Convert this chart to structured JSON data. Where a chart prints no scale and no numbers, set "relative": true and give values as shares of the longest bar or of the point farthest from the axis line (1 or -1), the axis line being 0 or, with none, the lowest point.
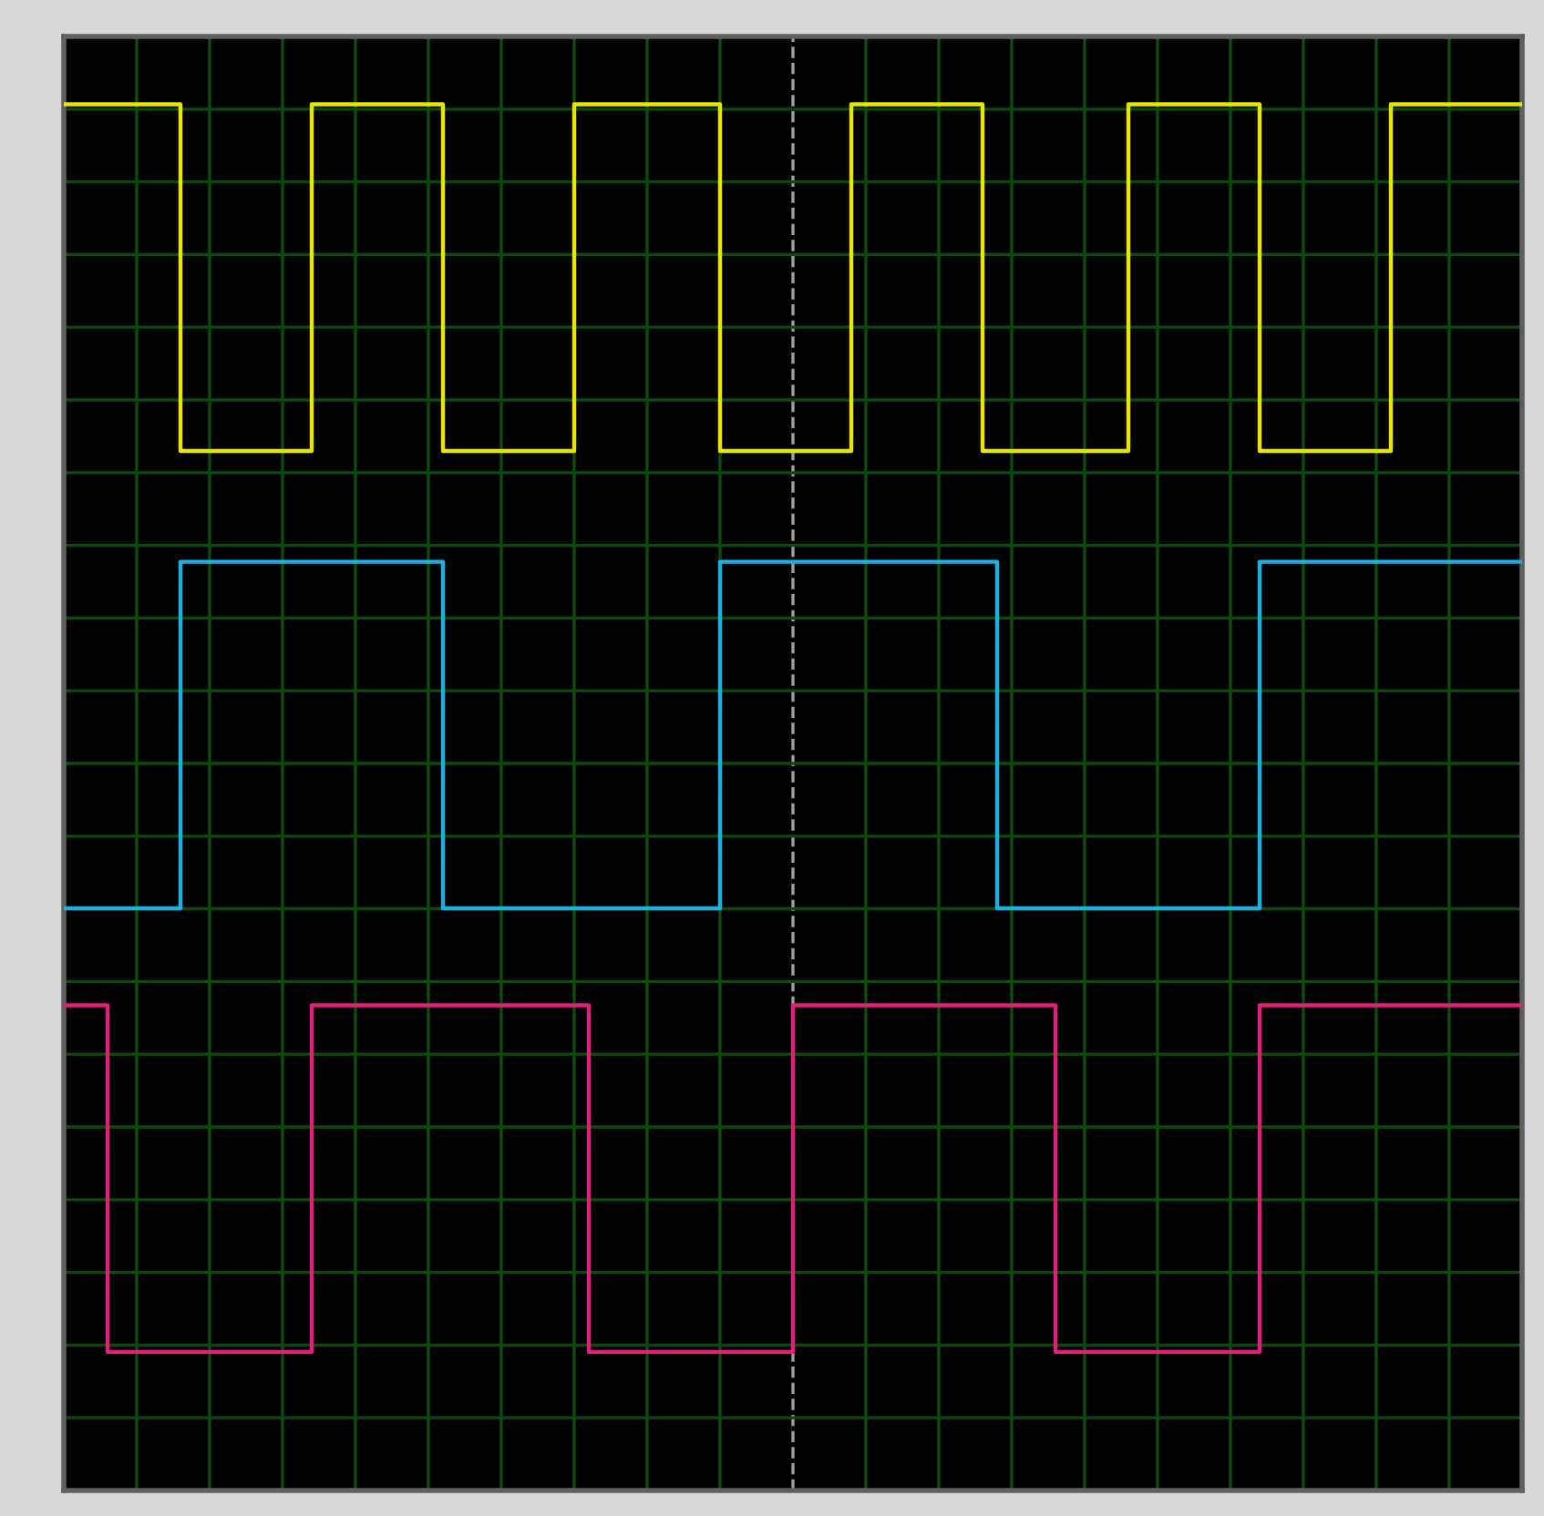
{
  "chart_data": {
    "type": "step",
    "relative": true,
    "grid": true,
    "line_style": "solid",
    "categories": [
      null,
      null,
      null,
      null,
      null,
      null,
      null,
      null,
      null,
      null,
      null,
      null,
      null,
      null,
      null,
      null,
      null,
      null,
      null,
      null,
      null,
      null,
      null,
      null,
      null,
      null,
      null,
      null,
      null,
      null,
      null,
      null,
      null,
      null,
      null,
      null,
      null,
      null,
      null,
      null,
      null,
      null,
      null,
      null,
      null,
      null,
      null,
      null,
      null,
      null,
      null,
      null,
      null,
      null,
      null,
      null,
      null,
      null,
      null,
      null,
      null,
      null,
      null,
      null,
      null,
      null,
      null,
      null,
      null,
      null,
      null,
      null,
      null,
      null,
      null,
      null,
      null,
      null,
      null,
      null,
      null,
      null,
      null,
      null,
      null,
      null,
      null,
      null,
      null,
      null,
      null,
      null,
      null,
      null,
      null,
      null,
      null,
      null,
      null,
      null,
      null
    ],
    "series": [
      {
        "color": "#e6e600",
        "values": [
          1,
          1,
          1,
          1,
          1,
          1,
          1,
          1,
          0.75,
          0.75,
          0.75,
          0.75,
          0.75,
          0.75,
          0.75,
          0.75,
          0.75,
          1,
          1,
          1,
          1,
          1,
          1,
          1,
          1,
          1,
          0.75,
          0.75,
          0.75,
          0.75,
          0.75,
          0.75,
          0.75,
          0.75,
          0.75,
          1,
          1,
          1,
          1,
          1,
          1,
          1,
          1,
          1,
          1,
          0.75,
          0.75,
          0.75,
          0.75,
          0.75,
          0.75,
          0.75,
          0.75,
          0.75,
          1,
          1,
          1,
          1,
          1,
          1,
          1,
          1,
          1,
          0.75,
          0.75,
          0.75,
          0.75,
          0.75,
          0.75,
          0.75,
          0.75,
          0.75,
          0.75,
          1,
          1,
          1,
          1,
          1,
          1,
          1,
          1,
          1,
          0.75,
          0.75,
          0.75,
          0.75,
          0.75,
          0.75,
          0.75,
          0.75,
          0.75,
          1,
          1,
          1,
          1,
          1,
          1,
          1,
          1,
          1,
          1
        ]
      },
      {
        "color": "#1ab0e0",
        "values": [
          0.42,
          0.42,
          0.42,
          0.42,
          0.42,
          0.42,
          0.42,
          0.42,
          0.67,
          0.67,
          0.67,
          0.67,
          0.67,
          0.67,
          0.67,
          0.67,
          0.67,
          0.67,
          0.67,
          0.67,
          0.67,
          0.67,
          0.67,
          0.67,
          0.67,
          0.67,
          0.42,
          0.42,
          0.42,
          0.42,
          0.42,
          0.42,
          0.42,
          0.42,
          0.42,
          0.42,
          0.42,
          0.42,
          0.42,
          0.42,
          0.42,
          0.42,
          0.42,
          0.42,
          0.42,
          0.67,
          0.67,
          0.67,
          0.67,
          0.67,
          0.67,
          0.67,
          0.67,
          0.67,
          0.67,
          0.67,
          0.67,
          0.67,
          0.67,
          0.67,
          0.67,
          0.67,
          0.67,
          0.67,
          0.42,
          0.42,
          0.42,
          0.42,
          0.42,
          0.42,
          0.42,
          0.42,
          0.42,
          0.42,
          0.42,
          0.42,
          0.42,
          0.42,
          0.42,
          0.42,
          0.42,
          0.42,
          0.67,
          0.67,
          0.67,
          0.67,
          0.67,
          0.67,
          0.67,
          0.67,
          0.67,
          0.67,
          0.67,
          0.67,
          0.67,
          0.67,
          0.67,
          0.67,
          0.67,
          0.67,
          0.67
        ]
      },
      {
        "color": "#e0207a",
        "values": [
          0.35,
          0.35,
          0.35,
          0.1,
          0.1,
          0.1,
          0.1,
          0.1,
          0.1,
          0.1,
          0.1,
          0.1,
          0.1,
          0.1,
          0.1,
          0.1,
          0.1,
          0.35,
          0.35,
          0.35,
          0.35,
          0.35,
          0.35,
          0.35,
          0.35,
          0.35,
          0.35,
          0.35,
          0.35,
          0.35,
          0.35,
          0.35,
          0.35,
          0.35,
          0.35,
          0.35,
          0.1,
          0.1,
          0.1,
          0.1,
          0.1,
          0.1,
          0.1,
          0.1,
          0.1,
          0.1,
          0.1,
          0.1,
          0.1,
          0.1,
          0.35,
          0.35,
          0.35,
          0.35,
          0.35,
          0.35,
          0.35,
          0.35,
          0.35,
          0.35,
          0.35,
          0.35,
          0.35,
          0.35,
          0.35,
          0.35,
          0.35,
          0.35,
          0.1,
          0.1,
          0.1,
          0.1,
          0.1,
          0.1,
          0.1,
          0.1,
          0.1,
          0.1,
          0.1,
          0.1,
          0.1,
          0.1,
          0.35,
          0.35,
          0.35,
          0.35,
          0.35,
          0.35,
          0.35,
          0.35,
          0.35,
          0.35,
          0.35,
          0.35,
          0.35,
          0.35,
          0.35,
          0.35,
          0.35,
          0.35,
          0.35
        ]
      }
    ]
  }
}
